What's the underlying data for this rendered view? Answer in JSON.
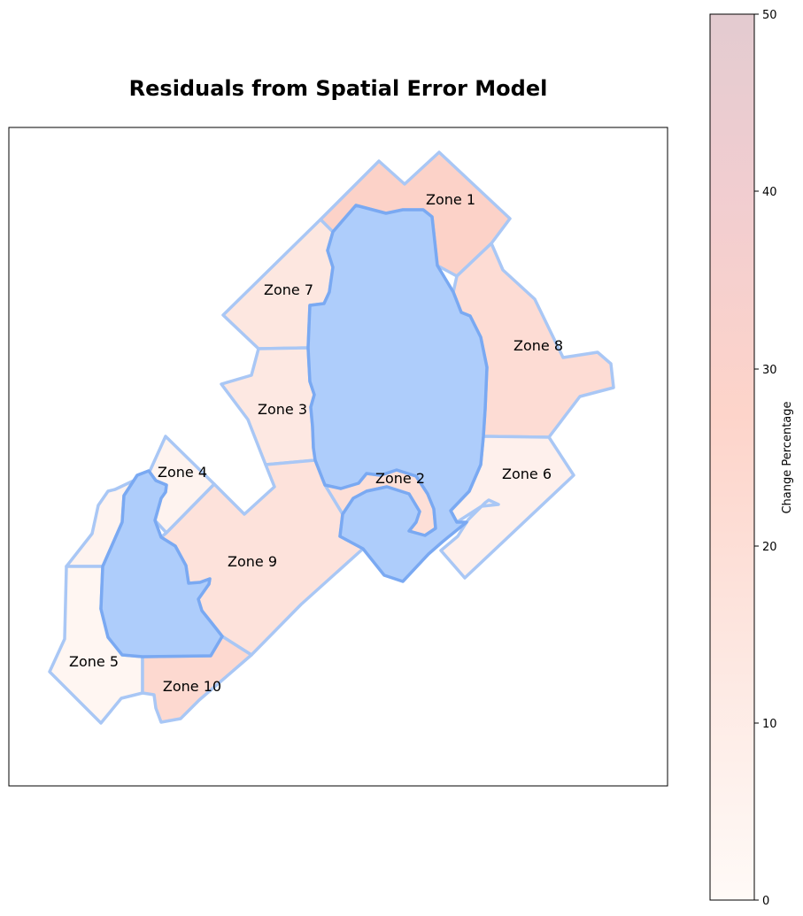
{
  "map": {
    "title": "Residuals from Spatial Error Model",
    "zones": [
      {
        "id": "zone-1",
        "label": "Zone 1",
        "value": 28
      },
      {
        "id": "zone-2",
        "label": "Zone 2",
        "value": 19
      },
      {
        "id": "zone-3",
        "label": "Zone 3",
        "value": 13
      },
      {
        "id": "zone-4",
        "label": "Zone 4",
        "value": 5
      },
      {
        "id": "zone-5",
        "label": "Zone 5",
        "value": 3
      },
      {
        "id": "zone-6",
        "label": "Zone 6",
        "value": 7
      },
      {
        "id": "zone-7",
        "label": "Zone 7",
        "value": 14
      },
      {
        "id": "zone-8",
        "label": "Zone 8",
        "value": 21
      },
      {
        "id": "zone-9",
        "label": "Zone 9",
        "value": 17
      },
      {
        "id": "zone-10",
        "label": "Zone 10",
        "value": 23
      }
    ]
  },
  "colorbar": {
    "label": "Change Percentage",
    "min": 0,
    "max": 50,
    "ticks": [
      "0",
      "10",
      "20",
      "30",
      "40",
      "50"
    ],
    "color_low": "#fffaf7",
    "color_mid": "#fdd2c8",
    "color_high": "#e3cbd0"
  },
  "water_color": "#aecdfb",
  "boundary_color": "#a9c7f5"
}
